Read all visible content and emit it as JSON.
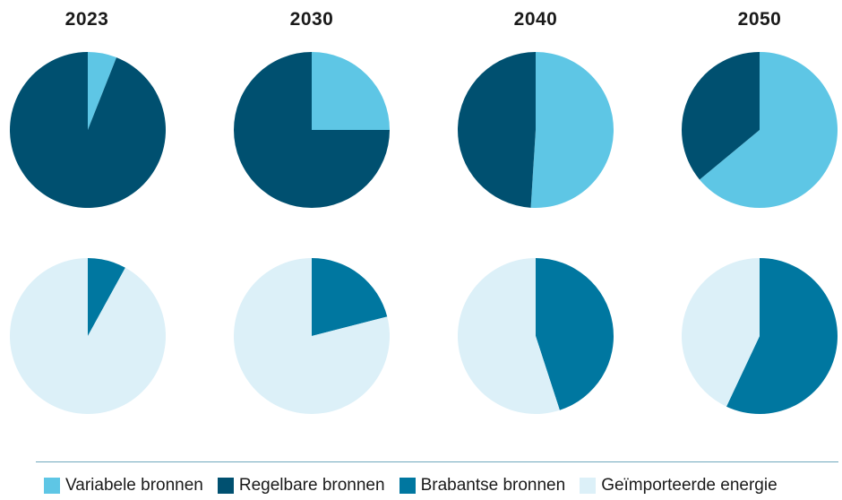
{
  "colors": {
    "variabel": "#5ec6e5",
    "regelbaar": "#005070",
    "brabants": "#0077a0",
    "geimporteerd": "#dcf0f8"
  },
  "legend": [
    {
      "label": "Variabele bronnen",
      "color": "#5ec6e5"
    },
    {
      "label": "Regelbare bronnen",
      "color": "#005070"
    },
    {
      "label": "Brabantse bronnen",
      "color": "#0077a0"
    },
    {
      "label": "Geïmporteerde energie",
      "color": "#dcf0f8"
    }
  ],
  "chart_data": [
    {
      "type": "pie",
      "title": "",
      "categories": [
        "2023",
        "2030",
        "2040",
        "2050"
      ],
      "series": [
        {
          "name": "Variabele bronnen",
          "values": [
            6,
            25,
            51,
            64
          ]
        },
        {
          "name": "Regelbare bronnen",
          "values": [
            94,
            75,
            49,
            36
          ]
        }
      ]
    },
    {
      "type": "pie",
      "title": "",
      "categories": [
        "2023",
        "2030",
        "2040",
        "2050"
      ],
      "series": [
        {
          "name": "Brabantse bronnen",
          "values": [
            8,
            21,
            45,
            57
          ]
        },
        {
          "name": "Geïmporteerde energie",
          "values": [
            92,
            79,
            55,
            43
          ]
        }
      ]
    }
  ]
}
